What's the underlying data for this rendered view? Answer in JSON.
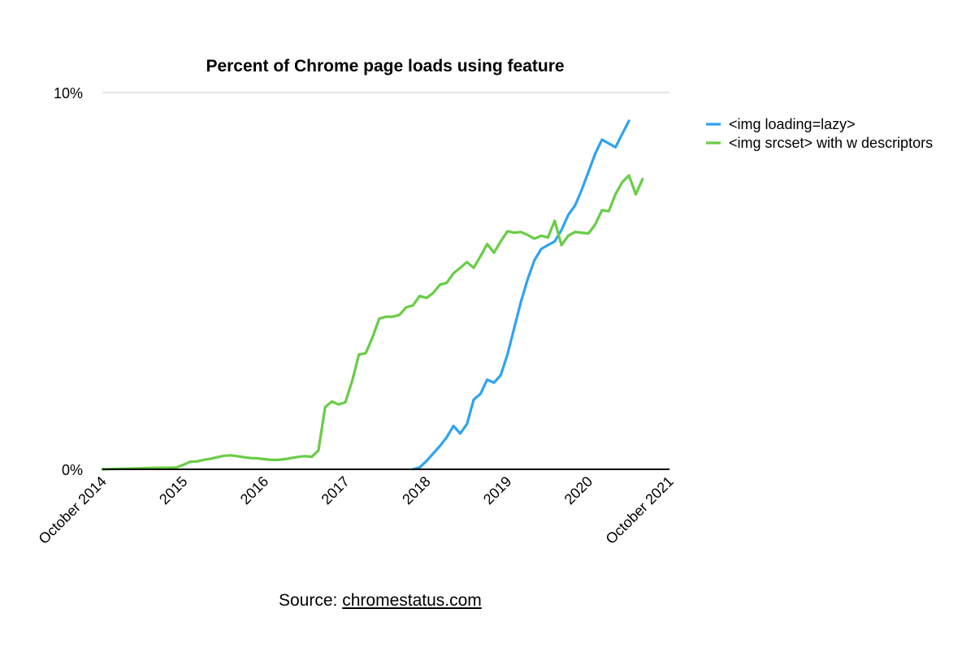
{
  "source": {
    "prefix": "Source: ",
    "link": "chromestatus.com"
  },
  "chart_data": {
    "type": "line",
    "title": "Percent of Chrome page loads using feature",
    "xlabel": "",
    "ylabel": "",
    "ylim": [
      0,
      10
    ],
    "xlim": [
      "2014-10",
      "2021-10"
    ],
    "y_ticks": [
      {
        "value": 0,
        "label": "0%"
      },
      {
        "value": 10,
        "label": "10%"
      }
    ],
    "x_ticks": [
      {
        "date": "2014-10",
        "label": "October 2014"
      },
      {
        "date": "2015-10",
        "label": "2015"
      },
      {
        "date": "2016-10",
        "label": "2016"
      },
      {
        "date": "2017-10",
        "label": "2017"
      },
      {
        "date": "2018-10",
        "label": "2018"
      },
      {
        "date": "2019-10",
        "label": "2019"
      },
      {
        "date": "2020-10",
        "label": "2020"
      },
      {
        "date": "2021-10",
        "label": "October 2021"
      }
    ],
    "grid": "horizontal line at 10%",
    "legend_position": "top-right",
    "series": [
      {
        "name": "<img loading=lazy>",
        "color": "#2ea3f2",
        "points": [
          [
            "2018-08",
            0.0
          ],
          [
            "2018-09",
            0.05
          ],
          [
            "2018-10",
            0.22
          ],
          [
            "2018-11",
            0.42
          ],
          [
            "2018-12",
            0.62
          ],
          [
            "2019-01",
            0.85
          ],
          [
            "2019-02",
            1.15
          ],
          [
            "2019-03",
            0.95
          ],
          [
            "2019-04",
            1.2
          ],
          [
            "2019-05",
            1.85
          ],
          [
            "2019-06",
            2.0
          ],
          [
            "2019-07",
            2.38
          ],
          [
            "2019-08",
            2.3
          ],
          [
            "2019-09",
            2.5
          ],
          [
            "2019-10",
            3.05
          ],
          [
            "2019-11",
            3.75
          ],
          [
            "2019-12",
            4.45
          ],
          [
            "2020-01",
            5.05
          ],
          [
            "2020-02",
            5.55
          ],
          [
            "2020-03",
            5.85
          ],
          [
            "2020-04",
            5.95
          ],
          [
            "2020-05",
            6.05
          ],
          [
            "2020-06",
            6.35
          ],
          [
            "2020-07",
            6.75
          ],
          [
            "2020-08",
            7.0
          ],
          [
            "2020-09",
            7.42
          ],
          [
            "2020-10",
            7.9
          ],
          [
            "2020-11",
            8.38
          ],
          [
            "2020-12",
            8.75
          ],
          [
            "2021-02",
            8.55
          ],
          [
            "2021-04",
            9.25
          ]
        ]
      },
      {
        "name": "<img srcset> with w descriptors",
        "color": "#68cd45",
        "points": [
          [
            "2014-10",
            0.0
          ],
          [
            "2014-12",
            0.01
          ],
          [
            "2015-02",
            0.02
          ],
          [
            "2015-04",
            0.03
          ],
          [
            "2015-06",
            0.04
          ],
          [
            "2015-08",
            0.04
          ],
          [
            "2015-09",
            0.05
          ],
          [
            "2015-10",
            0.12
          ],
          [
            "2015-11",
            0.2
          ],
          [
            "2015-12",
            0.21
          ],
          [
            "2016-01",
            0.25
          ],
          [
            "2016-02",
            0.28
          ],
          [
            "2016-03",
            0.32
          ],
          [
            "2016-04",
            0.36
          ],
          [
            "2016-05",
            0.37
          ],
          [
            "2016-06",
            0.35
          ],
          [
            "2016-07",
            0.32
          ],
          [
            "2016-08",
            0.3
          ],
          [
            "2016-09",
            0.29
          ],
          [
            "2016-10",
            0.27
          ],
          [
            "2016-11",
            0.25
          ],
          [
            "2016-12",
            0.25
          ],
          [
            "2017-01",
            0.27
          ],
          [
            "2017-02",
            0.3
          ],
          [
            "2017-03",
            0.33
          ],
          [
            "2017-04",
            0.35
          ],
          [
            "2017-05",
            0.33
          ],
          [
            "2017-06",
            0.5
          ],
          [
            "2017-07",
            1.65
          ],
          [
            "2017-08",
            1.8
          ],
          [
            "2017-09",
            1.72
          ],
          [
            "2017-10",
            1.78
          ],
          [
            "2017-11",
            2.35
          ],
          [
            "2017-12",
            3.05
          ],
          [
            "2018-01",
            3.08
          ],
          [
            "2018-02",
            3.5
          ],
          [
            "2018-03",
            4.0
          ],
          [
            "2018-04",
            4.05
          ],
          [
            "2018-05",
            4.05
          ],
          [
            "2018-06",
            4.1
          ],
          [
            "2018-07",
            4.3
          ],
          [
            "2018-08",
            4.35
          ],
          [
            "2018-09",
            4.6
          ],
          [
            "2018-10",
            4.55
          ],
          [
            "2018-11",
            4.68
          ],
          [
            "2018-12",
            4.9
          ],
          [
            "2019-01",
            4.95
          ],
          [
            "2019-02",
            5.2
          ],
          [
            "2019-03",
            5.35
          ],
          [
            "2019-04",
            5.5
          ],
          [
            "2019-05",
            5.35
          ],
          [
            "2019-06",
            5.65
          ],
          [
            "2019-07",
            5.98
          ],
          [
            "2019-08",
            5.75
          ],
          [
            "2019-09",
            6.05
          ],
          [
            "2019-10",
            6.32
          ],
          [
            "2019-11",
            6.28
          ],
          [
            "2019-12",
            6.3
          ],
          [
            "2020-01",
            6.22
          ],
          [
            "2020-02",
            6.12
          ],
          [
            "2020-03",
            6.2
          ],
          [
            "2020-04",
            6.15
          ],
          [
            "2020-05",
            6.6
          ],
          [
            "2020-06",
            5.95
          ],
          [
            "2020-07",
            6.2
          ],
          [
            "2020-08",
            6.3
          ],
          [
            "2020-09",
            6.28
          ],
          [
            "2020-10",
            6.26
          ],
          [
            "2020-11",
            6.5
          ],
          [
            "2020-12",
            6.88
          ],
          [
            "2021-01",
            6.85
          ],
          [
            "2021-02",
            7.3
          ],
          [
            "2021-03",
            7.62
          ],
          [
            "2021-04",
            7.8
          ],
          [
            "2021-05",
            7.3
          ],
          [
            "2021-06",
            7.7
          ]
        ]
      }
    ]
  }
}
